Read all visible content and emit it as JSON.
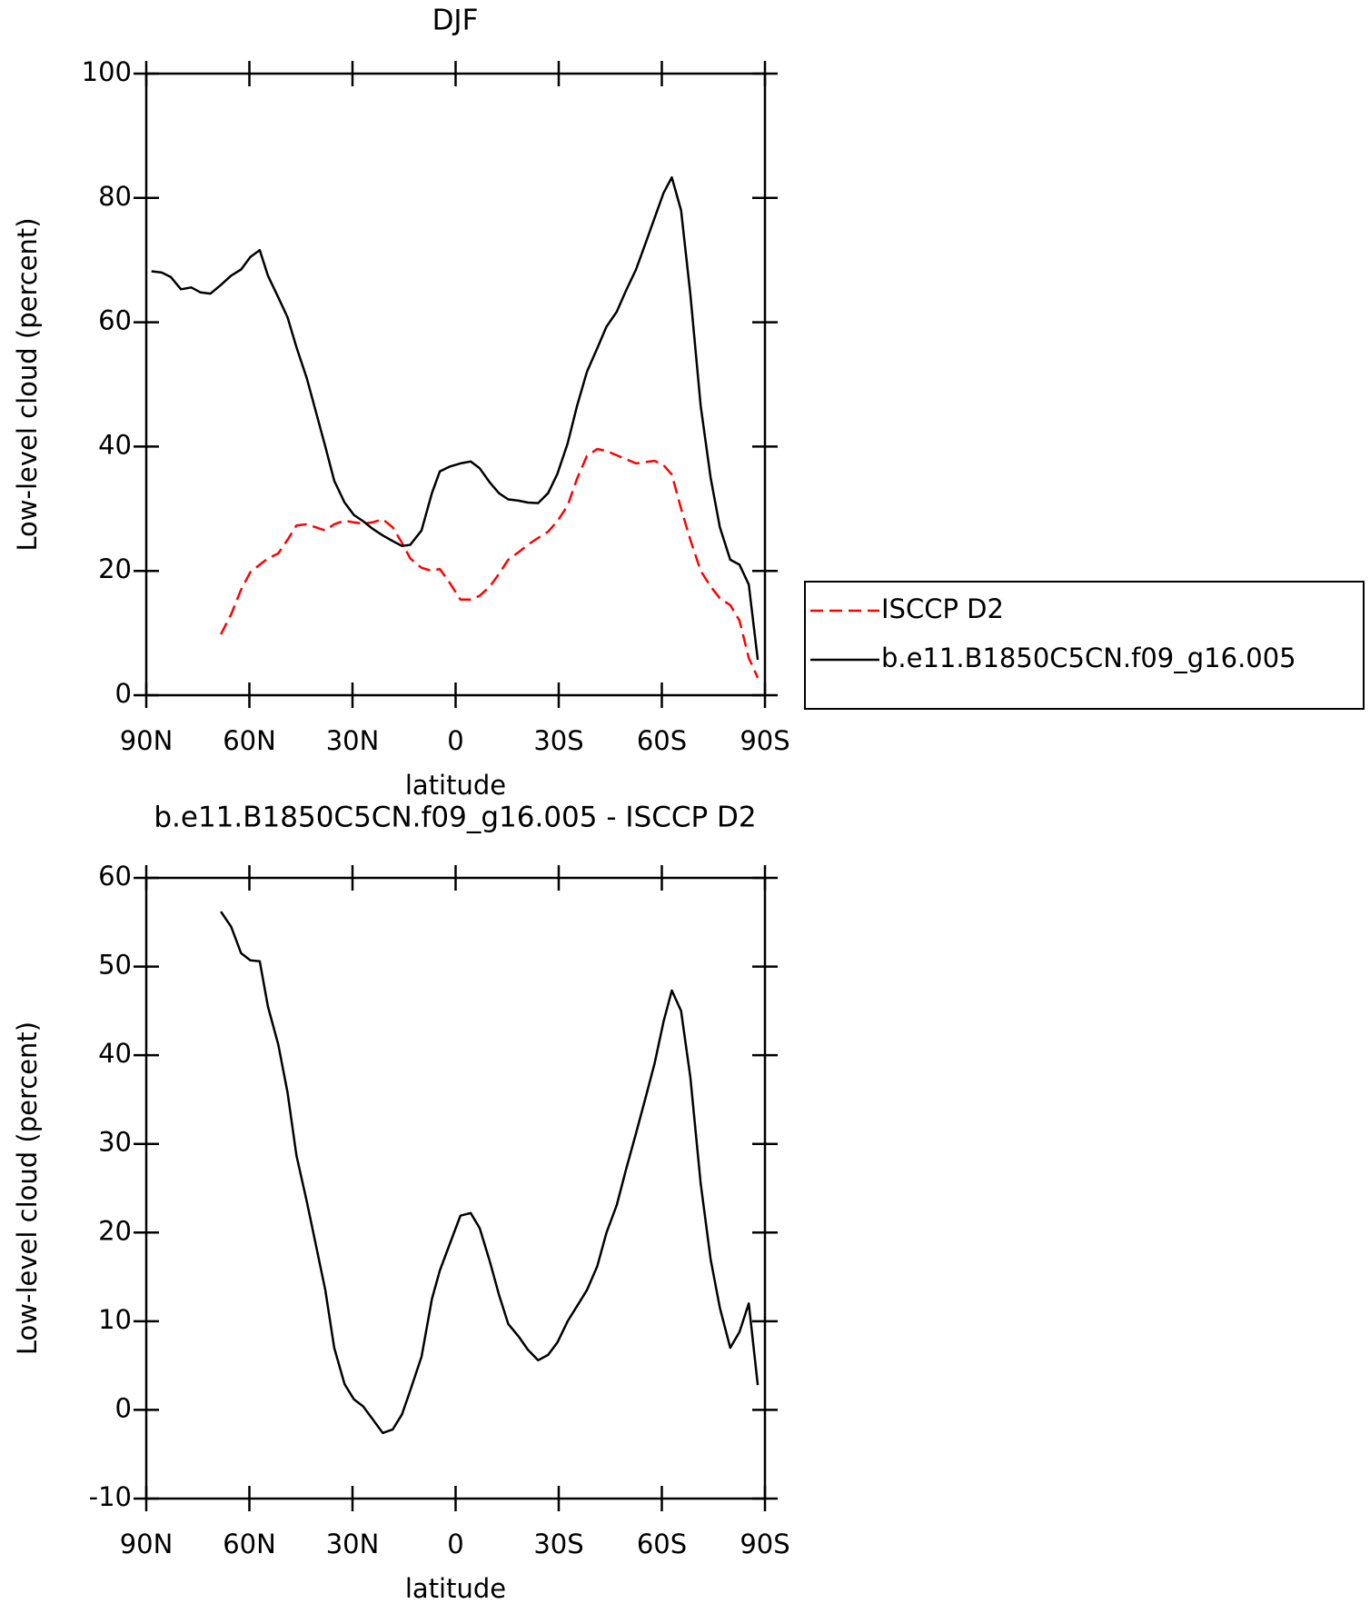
{
  "chart_data": [
    {
      "type": "line",
      "title": "DJF",
      "xlabel": "latitude",
      "ylabel": "Low-level cloud (percent)",
      "x": [
        88.5,
        85.5,
        82.9,
        79.9,
        76.9,
        74.2,
        71.3,
        68.3,
        65.3,
        62.4,
        59.7,
        57.0,
        54.6,
        51.6,
        48.9,
        46.3,
        43.3,
        40.6,
        37.9,
        35.3,
        32.3,
        29.6,
        26.9,
        24.2,
        21.2,
        18.3,
        15.6,
        13.2,
        9.9,
        6.9,
        4.6,
        1.6,
        -1.4,
        -4.4,
        -7.0,
        -10.0,
        -12.6,
        -15.3,
        -18.3,
        -21.0,
        -24.0,
        -26.9,
        -29.6,
        -32.6,
        -35.3,
        -38.2,
        -41.2,
        -43.9,
        -46.9,
        -49.5,
        -52.5,
        -55.2,
        -57.9,
        -60.5,
        -62.9,
        -65.6,
        -68.3,
        -71.3,
        -74.2,
        -76.9,
        -79.9,
        -82.6,
        -85.3,
        -87.9
      ],
      "series": [
        {
          "name": "ISCCP D2",
          "color": "#ff0000",
          "dash": true,
          "values": [
            null,
            null,
            null,
            null,
            null,
            null,
            null,
            9.8,
            13,
            17,
            19.8,
            21,
            22,
            22.8,
            25,
            27.3,
            27.5,
            27,
            26.5,
            27.5,
            28.1,
            27.8,
            27.6,
            27.8,
            28.3,
            27,
            24.5,
            22,
            20.5,
            20,
            20.3,
            18,
            15.4,
            15.4,
            16,
            17.5,
            19.5,
            21.8,
            23,
            24.2,
            25.3,
            26.3,
            28,
            30.5,
            34.8,
            38.5,
            39.6,
            39.3,
            38.6,
            38,
            37.3,
            37.5,
            37.7,
            37,
            35.5,
            30,
            25,
            20,
            17.5,
            15.6,
            14.5,
            12,
            6,
            2.8
          ]
        },
        {
          "name": "b.e11.B1850C5CN.f09_g16.005",
          "color": "#000000",
          "dash": false,
          "values": [
            68.2,
            68,
            67.3,
            65.3,
            65.6,
            64.8,
            64.6,
            66,
            67.5,
            68.5,
            70.5,
            71.6,
            67.5,
            64,
            60.8,
            56,
            51,
            45.5,
            40,
            34.5,
            31,
            29,
            28,
            26.8,
            25.7,
            24.8,
            24,
            24.2,
            26.5,
            32.5,
            36,
            36.8,
            37.3,
            37.6,
            36.5,
            34.2,
            32.5,
            31.5,
            31.3,
            31,
            30.9,
            32.5,
            35.6,
            40.5,
            46.5,
            52,
            55.8,
            59.3,
            61.7,
            65,
            68.5,
            72.6,
            76.8,
            80.8,
            83.3,
            78,
            64.5,
            46.5,
            35,
            27,
            21.8,
            21,
            17.8,
            5.7
          ]
        }
      ],
      "xlim": [
        90,
        -90
      ],
      "xticks": [
        {
          "value": 90,
          "label": "90N"
        },
        {
          "value": 60,
          "label": "60N"
        },
        {
          "value": 30,
          "label": "30N"
        },
        0,
        {
          "value": -30,
          "label": "30S"
        },
        {
          "value": -60,
          "label": "60S"
        },
        {
          "value": -90,
          "label": "90S"
        }
      ],
      "ylim": [
        0,
        100
      ],
      "yticks": [
        0,
        20,
        40,
        60,
        80,
        100
      ],
      "legend": "right"
    },
    {
      "type": "line",
      "title": "b.e11.B1850C5CN.f09_g16.005 - ISCCP D2",
      "xlabel": "latitude",
      "ylabel": "Low-level cloud (percent)",
      "x": [
        68.3,
        65.3,
        62.4,
        59.7,
        57.0,
        54.6,
        51.6,
        48.9,
        46.3,
        43.3,
        40.6,
        37.9,
        35.3,
        32.3,
        29.6,
        26.9,
        24.2,
        21.2,
        18.3,
        15.6,
        13.2,
        9.9,
        6.9,
        4.6,
        1.6,
        -1.4,
        -4.4,
        -7.0,
        -10.0,
        -12.6,
        -15.3,
        -18.3,
        -21.0,
        -24.0,
        -26.9,
        -29.6,
        -32.6,
        -35.3,
        -38.2,
        -41.2,
        -43.9,
        -46.9,
        -49.5,
        -52.5,
        -55.2,
        -57.9,
        -60.5,
        -62.9,
        -65.6,
        -68.3,
        -71.3,
        -74.2,
        -76.9,
        -79.9,
        -82.6,
        -85.3,
        -87.9
      ],
      "series": [
        {
          "color": "#000000",
          "dash": false,
          "values": [
            56.2,
            54.5,
            51.5,
            50.7,
            50.6,
            45.5,
            41.2,
            35.8,
            28.7,
            23.5,
            18.5,
            13.5,
            7.0,
            2.9,
            1.2,
            0.4,
            -1.0,
            -2.6,
            -2.2,
            -0.5,
            2.2,
            6.0,
            12.5,
            15.7,
            18.8,
            21.9,
            22.2,
            20.5,
            16.7,
            13.0,
            9.7,
            8.3,
            6.8,
            5.6,
            6.2,
            7.6,
            10.0,
            11.7,
            13.5,
            16.2,
            20.0,
            23.1,
            27.0,
            31.2,
            35.1,
            39.1,
            43.8,
            47.3,
            45,
            37.5,
            25.5,
            17,
            11.5,
            7,
            8.8,
            12,
            2.8
          ]
        }
      ],
      "xlim": [
        90,
        -90
      ],
      "xticks": [
        {
          "value": 90,
          "label": "90N"
        },
        {
          "value": 60,
          "label": "60N"
        },
        {
          "value": 30,
          "label": "30N"
        },
        0,
        {
          "value": -30,
          "label": "30S"
        },
        {
          "value": -60,
          "label": "60S"
        },
        {
          "value": -90,
          "label": "90S"
        }
      ],
      "ylim": [
        -10,
        60
      ],
      "yticks": [
        -10,
        0,
        10,
        20,
        30,
        40,
        50,
        60
      ]
    }
  ]
}
